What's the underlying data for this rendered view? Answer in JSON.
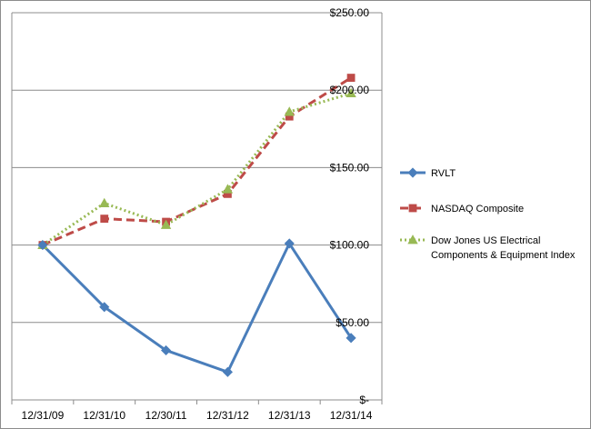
{
  "chart_data": {
    "type": "line",
    "title": "",
    "xlabel": "",
    "ylabel": "",
    "categories": [
      "12/31/09",
      "12/31/10",
      "12/30/11",
      "12/31/12",
      "12/31/13",
      "12/31/14"
    ],
    "ylim": [
      0,
      250
    ],
    "y_ticks": [
      0,
      50,
      100,
      150,
      200,
      250
    ],
    "y_tick_labels": [
      "$-",
      "$50.00",
      "$100.00",
      "$150.00",
      "$200.00",
      "$250.00"
    ],
    "y_axis_side": "right",
    "grid": true,
    "legend_position": "right",
    "series": [
      {
        "name": "RVLT",
        "values": [
          100,
          60,
          32,
          18,
          101,
          40
        ],
        "color": "#4a7ebb",
        "line_style": "solid",
        "marker": "diamond"
      },
      {
        "name": "NASDAQ Composite",
        "values": [
          100,
          117,
          115,
          133,
          183,
          208
        ],
        "color": "#be4b48",
        "line_style": "dashed",
        "marker": "square"
      },
      {
        "name": "Dow Jones US Electrical Components  & Equipment Index",
        "legend_lines": [
          "Dow Jones US Electrical",
          "Components  & Equipment Index"
        ],
        "values": [
          100,
          127,
          113,
          136,
          186,
          198
        ],
        "color": "#98b954",
        "line_style": "dotted",
        "marker": "triangle"
      }
    ]
  }
}
